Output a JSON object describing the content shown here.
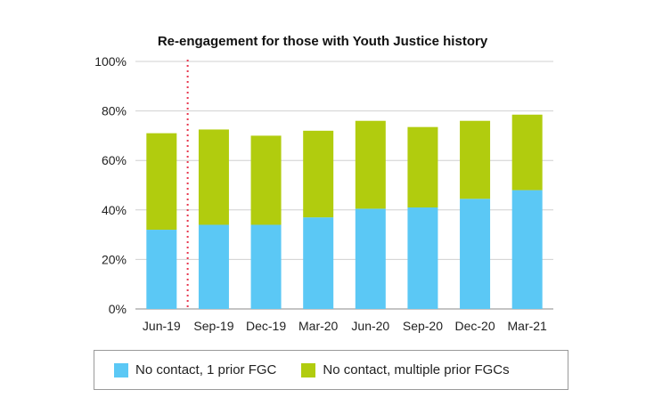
{
  "chart_data": {
    "type": "bar",
    "stacked": true,
    "title": "Re-engagement for those with Youth Justice history",
    "categories": [
      "Jun-19",
      "Sep-19",
      "Dec-19",
      "Mar-20",
      "Jun-20",
      "Sep-20",
      "Dec-20",
      "Mar-21"
    ],
    "series": [
      {
        "name": "No contact, 1 prior FGC",
        "color": "#5bc8f5",
        "values": [
          32,
          34,
          34,
          37,
          40.5,
          41,
          44.5,
          48
        ]
      },
      {
        "name": "No contact, multiple prior FGCs",
        "color": "#b1cc0e",
        "values": [
          39,
          38.5,
          36,
          35,
          35.5,
          32.5,
          31.5,
          30.5
        ]
      }
    ],
    "ylim": [
      0,
      100
    ],
    "y_ticks": [
      "0%",
      "20%",
      "40%",
      "60%",
      "80%",
      "100%"
    ],
    "grid": true,
    "legend_position": "bottom",
    "marker_after_category": "Jun-19",
    "marker_color": "#e8384f"
  }
}
